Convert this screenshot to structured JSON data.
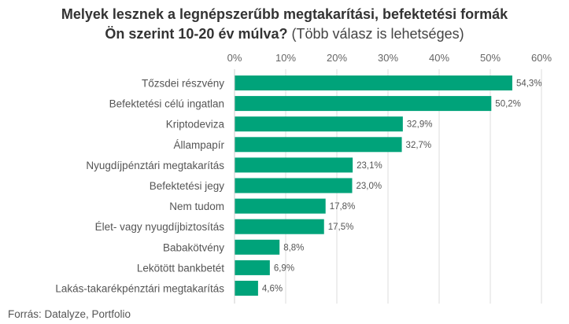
{
  "title": {
    "line1": "Melyek lesznek a legnépszerűbb megtakarítási, befektetési formák",
    "line2_bold": "Ön szerint 10-20 év múlva?",
    "line2_normal": " (Több válasz is lehetséges)"
  },
  "colors": {
    "bar": "#00a37a",
    "grid": "#dddddd"
  },
  "chart_data": {
    "type": "bar",
    "orientation": "horizontal",
    "title": "Melyek lesznek a legnépszerűbb megtakarítási, befektetési formák Ön szerint 10-20 év múlva? (Több válasz is lehetséges)",
    "categories": [
      "Tőzsdei részvény",
      "Befektetési célú ingatlan",
      "Kriptodeviza",
      "Állampapír",
      "Nyugdíjpénztári megtakarítás",
      "Befektetési jegy",
      "Nem tudom",
      "Élet- vagy nyugdíjbiztosítás",
      "Babakötvény",
      "Lekötött bankbetét",
      "Lakás-takarékpénztári megtakarítás"
    ],
    "values": [
      54.3,
      50.2,
      32.9,
      32.7,
      23.1,
      23.0,
      17.8,
      17.5,
      8.8,
      6.9,
      4.6
    ],
    "value_labels": [
      "54,3%",
      "50,2%",
      "32,9%",
      "32,7%",
      "23,1%",
      "23,0%",
      "17,8%",
      "17,5%",
      "8,8%",
      "6,9%",
      "4,6%"
    ],
    "xlim": [
      0,
      60
    ],
    "xticks": [
      0,
      10,
      20,
      30,
      40,
      50,
      60
    ],
    "xtick_labels": [
      "0%",
      "10%",
      "20%",
      "30%",
      "40%",
      "50%",
      "60%"
    ],
    "xaxis_position": "top",
    "grid": true,
    "xlabel": "",
    "ylabel": ""
  },
  "source": "Forrás: Datalyze, Portfolio"
}
